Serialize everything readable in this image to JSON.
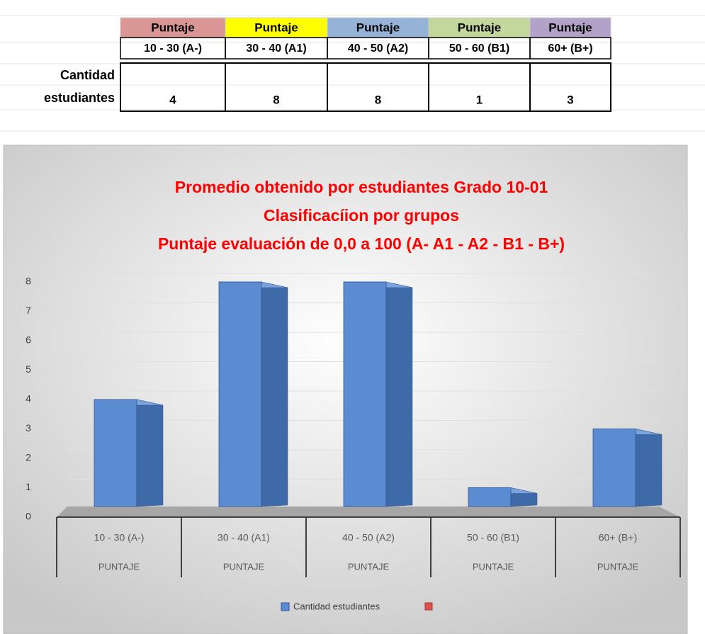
{
  "table": {
    "header": [
      {
        "text": "Puntaje",
        "color": "#d99694"
      },
      {
        "text": "Puntaje",
        "color": "#ffff00"
      },
      {
        "text": "Puntaje",
        "color": "#95b3d7"
      },
      {
        "text": "Puntaje",
        "color": "#c3d69b"
      },
      {
        "text": "Puntaje",
        "color": "#b3a2c7"
      }
    ],
    "ranges": [
      "10 - 30 (A-)",
      "30 - 40 (A1)",
      "40 - 50 (A2)",
      "50 - 60 (B1)",
      "60+ (B+)"
    ],
    "row_label": [
      "Cantidad",
      "estudiantes"
    ],
    "counts": [
      "4",
      "8",
      "8",
      "1",
      "3"
    ]
  },
  "chart_data": {
    "type": "bar3d",
    "title_lines": [
      "Promedio obtenido por estudiantes Grado 10-01",
      "Clasificacíion por grupos",
      "Puntaje evaluación de 0,0 a 100 (A- A1 - A2 - B1 - B+)"
    ],
    "categories": [
      "10 - 30 (A-)",
      "30 - 40 (A1)",
      "40 - 50 (A2)",
      "50 - 60 (B1)",
      "60+ (B+)"
    ],
    "category_sublabels": [
      "PUNTAJE",
      "PUNTAJE",
      "PUNTAJE",
      "PUNTAJE",
      "PUNTAJE"
    ],
    "series": [
      {
        "name": "Cantidad estudiantes",
        "color": "#5b8bd0",
        "values": [
          4,
          8,
          8,
          1,
          3
        ]
      }
    ],
    "ylim": [
      0,
      8
    ],
    "yticks": [
      0,
      1,
      2,
      3,
      4,
      5,
      6,
      7,
      8
    ],
    "grid": true
  }
}
